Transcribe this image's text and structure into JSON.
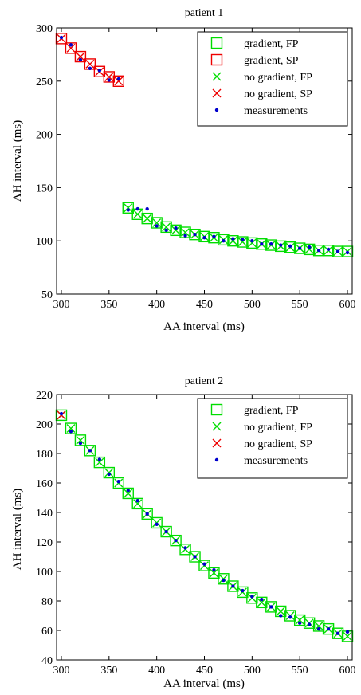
{
  "chart_data": [
    {
      "type": "scatter",
      "title": "patient 1",
      "xlabel": "AA interval (ms)",
      "ylabel": "AH interval (ms)",
      "xlim": [
        295,
        605
      ],
      "ylim": [
        50,
        300
      ],
      "xticks": [
        300,
        350,
        400,
        450,
        500,
        550,
        600
      ],
      "yticks": [
        50,
        100,
        150,
        200,
        250,
        300
      ],
      "grid": false,
      "legend_position": "top-right",
      "series": [
        {
          "name": "gradient, FP",
          "marker": "square",
          "color": "#00dd00",
          "x": [
            370,
            380,
            390,
            400,
            410,
            420,
            430,
            440,
            450,
            460,
            470,
            480,
            490,
            500,
            510,
            520,
            530,
            540,
            550,
            560,
            570,
            580,
            590,
            600
          ],
          "y": [
            131,
            125,
            121,
            117,
            113,
            110,
            108,
            106,
            104,
            103,
            101,
            100,
            99,
            98,
            97,
            96,
            95,
            94,
            93,
            92,
            91,
            91,
            90,
            90
          ]
        },
        {
          "name": "gradient, SP",
          "marker": "square",
          "color": "#ee0000",
          "x": [
            300,
            310,
            320,
            330,
            340,
            350,
            360
          ],
          "y": [
            290,
            281,
            273,
            266,
            259,
            254,
            250
          ]
        },
        {
          "name": "no gradient, FP",
          "marker": "x",
          "color": "#00dd00",
          "x": [
            370,
            380,
            390,
            400,
            410,
            420,
            430,
            440,
            450,
            460,
            470,
            480,
            490,
            500,
            510,
            520,
            530,
            540,
            550,
            560,
            570,
            580,
            590,
            600
          ],
          "y": [
            131,
            125,
            121,
            117,
            113,
            110,
            108,
            106,
            104,
            103,
            101,
            100,
            99,
            98,
            97,
            96,
            95,
            94,
            93,
            92,
            91,
            91,
            90,
            90
          ]
        },
        {
          "name": "no gradient, SP",
          "marker": "x",
          "color": "#ee0000",
          "x": [
            300,
            310,
            320,
            330,
            340,
            350,
            360
          ],
          "y": [
            290,
            281,
            273,
            266,
            259,
            254,
            250
          ]
        },
        {
          "name": "measurements",
          "marker": "dot",
          "color": "#0000cc",
          "x": [
            300,
            310,
            320,
            330,
            340,
            350,
            360,
            370,
            380,
            390,
            400,
            410,
            420,
            430,
            440,
            450,
            460,
            470,
            480,
            490,
            500,
            510,
            520,
            530,
            540,
            550,
            560,
            570,
            580,
            590,
            600
          ],
          "y": [
            291,
            284,
            270,
            262,
            260,
            251,
            252,
            129,
            130,
            130,
            114,
            110,
            112,
            105,
            106,
            103,
            104,
            100,
            102,
            101,
            100,
            97,
            97,
            96,
            95,
            93,
            94,
            91,
            92,
            90,
            89
          ]
        }
      ]
    },
    {
      "type": "scatter",
      "title": "patient 2",
      "xlabel": "AA interval (ms)",
      "ylabel": "AH interval (ms)",
      "xlim": [
        295,
        605
      ],
      "ylim": [
        40,
        220
      ],
      "xticks": [
        300,
        350,
        400,
        450,
        500,
        550,
        600
      ],
      "yticks": [
        40,
        60,
        80,
        100,
        120,
        140,
        160,
        180,
        200,
        220
      ],
      "grid": false,
      "legend_position": "top-right",
      "series": [
        {
          "name": "gradient, FP",
          "marker": "square",
          "color": "#00dd00",
          "x": [
            300,
            310,
            320,
            330,
            340,
            350,
            360,
            370,
            380,
            390,
            400,
            410,
            420,
            430,
            440,
            450,
            460,
            470,
            480,
            490,
            500,
            510,
            520,
            530,
            540,
            550,
            560,
            570,
            580,
            590,
            600
          ],
          "y": [
            206,
            197,
            189,
            182,
            174,
            167,
            160,
            153,
            146,
            139,
            133,
            127,
            121,
            115,
            110,
            104,
            99,
            95,
            90,
            86,
            82,
            79,
            76,
            73,
            70,
            67,
            65,
            63,
            61,
            58,
            56
          ]
        },
        {
          "name": "no gradient, FP",
          "marker": "x",
          "color": "#00dd00",
          "x": [
            300,
            310,
            320,
            330,
            340,
            350,
            360,
            370,
            380,
            390,
            400,
            410,
            420,
            430,
            440,
            450,
            460,
            470,
            480,
            490,
            500,
            510,
            520,
            530,
            540,
            550,
            560,
            570,
            580,
            590,
            600
          ],
          "y": [
            206,
            197,
            189,
            182,
            174,
            167,
            160,
            153,
            146,
            139,
            133,
            127,
            121,
            115,
            110,
            104,
            99,
            95,
            90,
            86,
            82,
            79,
            76,
            73,
            70,
            67,
            65,
            63,
            61,
            58,
            56
          ]
        },
        {
          "name": "no gradient, SP",
          "marker": "x",
          "color": "#ee0000",
          "x": [
            300
          ],
          "y": [
            206
          ]
        },
        {
          "name": "measurements",
          "marker": "dot",
          "color": "#0000cc",
          "x": [
            300,
            310,
            320,
            330,
            340,
            350,
            360,
            370,
            380,
            390,
            400,
            410,
            420,
            430,
            440,
            450,
            460,
            470,
            480,
            490,
            500,
            510,
            520,
            530,
            540,
            550,
            560,
            570,
            580,
            590,
            600
          ],
          "y": [
            207,
            195,
            187,
            182,
            176,
            166,
            161,
            155,
            148,
            139,
            132,
            127,
            121,
            116,
            110,
            105,
            101,
            94,
            90,
            87,
            83,
            81,
            76,
            70,
            69,
            65,
            64,
            61,
            61,
            58,
            59
          ]
        }
      ]
    }
  ]
}
